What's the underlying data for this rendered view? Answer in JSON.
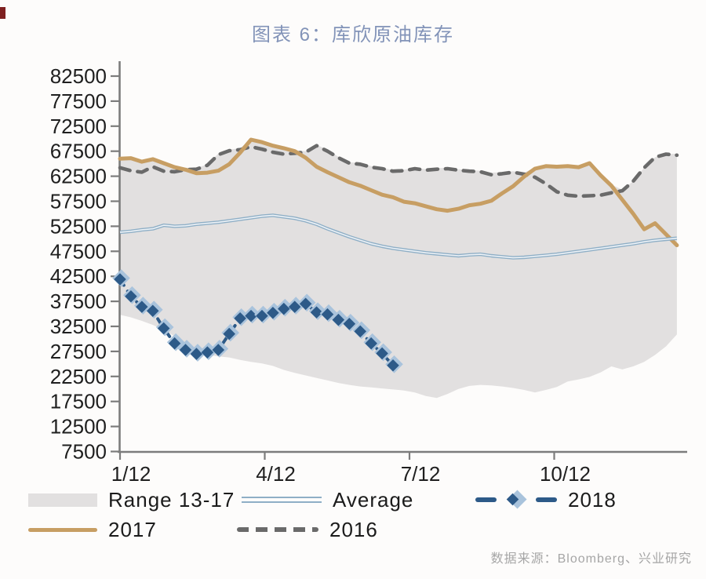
{
  "title": "图表 6：库欣原油库存",
  "source_note": "数据来源：Bloomberg、兴业研究",
  "legend": {
    "range": "Range 13-17",
    "average": "Average",
    "y2018": "2018",
    "y2017": "2017",
    "y2016": "2016"
  },
  "colors": {
    "band": "#e2e0e0",
    "c2017": "#c79e63",
    "c2016": "#6a6a6a",
    "avg": "#8fafc6",
    "avg_core": "#edf2f7",
    "c2018": "#2d5a88",
    "c2018_halo": "#a9c3dc",
    "axis": "#7c7c7c",
    "tick_text": "#1f1f1f",
    "title": "#8293b8"
  },
  "chart_data": {
    "type": "line",
    "title": "图表 6：库欣原油库存",
    "xlabel": "",
    "ylabel": "",
    "ylim": [
      7500,
      82500
    ],
    "grid": false,
    "legend_position": "bottom",
    "y_ticks": [
      82500,
      77500,
      72500,
      67500,
      62500,
      57500,
      52500,
      47500,
      42500,
      37500,
      32500,
      27500,
      22500,
      17500,
      12500,
      7500
    ],
    "x_ticks": [
      {
        "label": "1/12",
        "month": 0
      },
      {
        "label": "4/12",
        "month": 3
      },
      {
        "label": "7/12",
        "month": 6
      },
      {
        "label": "10/12",
        "month": 9
      }
    ],
    "x_unit": "weekly, weeks 0-51",
    "series": [
      {
        "name": "Range 13-17",
        "type": "band",
        "upper": [
          66200,
          66300,
          65700,
          66100,
          65300,
          64700,
          64200,
          64100,
          64900,
          67000,
          67800,
          68100,
          69900,
          69400,
          68800,
          68300,
          67700,
          67500,
          68800,
          67700,
          66400,
          65300,
          65100,
          64500,
          64200,
          63700,
          63800,
          64200,
          63900,
          64100,
          64200,
          63900,
          63700,
          63600,
          63200,
          63300,
          63500,
          63200,
          64200,
          64700,
          64600,
          64700,
          64500,
          65300,
          62700,
          60800,
          59800,
          61500,
          64200,
          66300,
          66900,
          67000
        ],
        "lower": [
          34800,
          34300,
          33600,
          32800,
          31800,
          30500,
          28800,
          27600,
          26800,
          26500,
          26300,
          25800,
          25400,
          25100,
          24600,
          23800,
          23200,
          22700,
          22200,
          21700,
          21200,
          20800,
          20500,
          20300,
          20100,
          19900,
          19700,
          19300,
          18600,
          18200,
          19000,
          20000,
          20600,
          20800,
          20700,
          20500,
          20200,
          19800,
          19300,
          19800,
          20400,
          21500,
          21900,
          22400,
          23300,
          24500,
          23900,
          24500,
          25400,
          26800,
          28500,
          30900
        ]
      },
      {
        "name": "Average",
        "type": "line",
        "values": [
          51300,
          51500,
          51800,
          52000,
          52700,
          52500,
          52600,
          52900,
          53100,
          53300,
          53600,
          53900,
          54200,
          54500,
          54700,
          54400,
          54100,
          53600,
          52900,
          52000,
          51200,
          50400,
          49700,
          49000,
          48500,
          48100,
          47800,
          47500,
          47200,
          47000,
          46800,
          46600,
          46800,
          46900,
          46600,
          46400,
          46200,
          46300,
          46500,
          46700,
          46900,
          47200,
          47500,
          47800,
          48100,
          48400,
          48700,
          49000,
          49400,
          49700,
          49900,
          50100
        ]
      },
      {
        "name": "2017",
        "type": "line",
        "values": [
          66000,
          66100,
          65400,
          65900,
          65100,
          64300,
          63800,
          63100,
          63200,
          63600,
          64900,
          67200,
          69800,
          69300,
          68600,
          68100,
          67500,
          66200,
          64400,
          63300,
          62300,
          61300,
          60600,
          59700,
          58800,
          58300,
          57400,
          57100,
          56500,
          55900,
          55600,
          56000,
          56700,
          57000,
          57600,
          59100,
          60500,
          62400,
          64000,
          64500,
          64400,
          64500,
          64300,
          65100,
          62700,
          60600,
          57800,
          55000,
          51900,
          53100,
          50900,
          48700
        ]
      },
      {
        "name": "2016",
        "type": "dashed-line",
        "values": [
          64200,
          63600,
          63300,
          64400,
          63500,
          63400,
          63800,
          63900,
          64700,
          66800,
          67600,
          67800,
          68400,
          67900,
          67300,
          66900,
          67100,
          67300,
          68600,
          67500,
          66200,
          65100,
          64900,
          64300,
          64000,
          63500,
          63600,
          64000,
          63700,
          63900,
          64000,
          63700,
          63500,
          63400,
          62800,
          63000,
          63300,
          62900,
          62300,
          61000,
          59400,
          58700,
          58500,
          58600,
          58700,
          59200,
          59600,
          61500,
          64200,
          66300,
          66900,
          66700
        ]
      },
      {
        "name": "2018",
        "type": "dashed-line-diamond-markers",
        "values": [
          41900,
          38500,
          36400,
          35600,
          32100,
          29100,
          27800,
          27000,
          27300,
          27800,
          31000,
          34100,
          34600,
          34600,
          35200,
          36000,
          36400,
          37000,
          35300,
          34900,
          33800,
          33000,
          31500,
          29100,
          27100,
          24700
        ]
      }
    ]
  }
}
